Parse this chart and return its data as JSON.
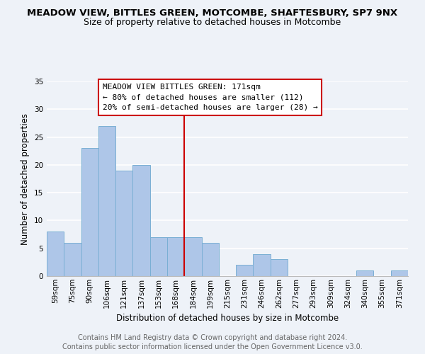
{
  "title": "MEADOW VIEW, BITTLES GREEN, MOTCOMBE, SHAFTESBURY, SP7 9NX",
  "subtitle": "Size of property relative to detached houses in Motcombe",
  "xlabel": "Distribution of detached houses by size in Motcombe",
  "ylabel": "Number of detached properties",
  "footer1": "Contains HM Land Registry data © Crown copyright and database right 2024.",
  "footer2": "Contains public sector information licensed under the Open Government Licence v3.0.",
  "bar_labels": [
    "59sqm",
    "75sqm",
    "90sqm",
    "106sqm",
    "121sqm",
    "137sqm",
    "153sqm",
    "168sqm",
    "184sqm",
    "199sqm",
    "215sqm",
    "231sqm",
    "246sqm",
    "262sqm",
    "277sqm",
    "293sqm",
    "309sqm",
    "324sqm",
    "340sqm",
    "355sqm",
    "371sqm"
  ],
  "bar_values": [
    8,
    6,
    23,
    27,
    19,
    20,
    7,
    7,
    7,
    6,
    0,
    2,
    4,
    3,
    0,
    0,
    0,
    0,
    1,
    0,
    1
  ],
  "bar_color": "#aec6e8",
  "bar_edge_color": "#7aafd4",
  "vline_x": 7.5,
  "vline_color": "#cc0000",
  "annotation_title": "MEADOW VIEW BITTLES GREEN: 171sqm",
  "annotation_line1": "← 80% of detached houses are smaller (112)",
  "annotation_line2": "20% of semi-detached houses are larger (28) →",
  "ylim": [
    0,
    35
  ],
  "yticks": [
    0,
    5,
    10,
    15,
    20,
    25,
    30,
    35
  ],
  "background_color": "#eef2f8",
  "grid_color": "#ffffff",
  "title_fontsize": 9.5,
  "subtitle_fontsize": 9,
  "axis_label_fontsize": 8.5,
  "tick_fontsize": 7.5,
  "footer_fontsize": 7,
  "ann_fontsize": 8
}
